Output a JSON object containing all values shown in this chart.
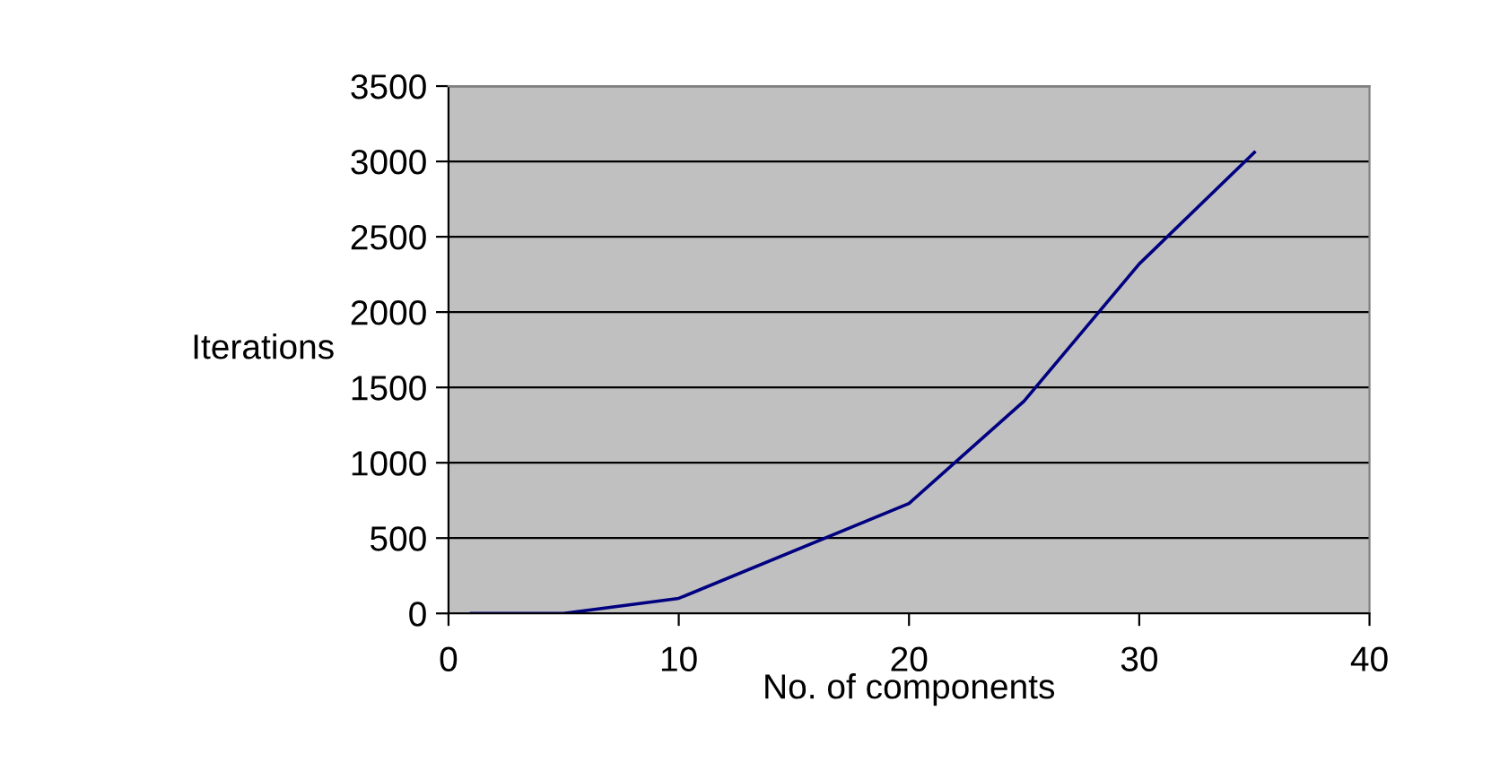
{
  "chart_data": {
    "type": "line",
    "xlabel": "No. of components",
    "ylabel": "Iterations",
    "x": [
      1,
      5,
      10,
      20,
      25,
      30,
      35
    ],
    "series": [
      {
        "color": "#000080",
        "values": [
          0,
          0,
          100,
          730,
          1410,
          2320,
          3060
        ]
      }
    ],
    "xlim": [
      0,
      40
    ],
    "xticks": [
      0,
      10,
      20,
      30,
      40
    ],
    "ylim": [
      0,
      3500
    ],
    "yticks": [
      0,
      500,
      1000,
      1500,
      2000,
      2500,
      3000,
      3500
    ],
    "grid": "y",
    "legend": false,
    "marker": "none",
    "line_style": "solid"
  }
}
